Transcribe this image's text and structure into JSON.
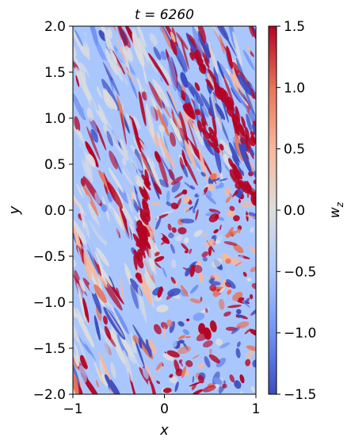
{
  "chart_data": {
    "type": "heatmap",
    "title": "t = 6260",
    "xlabel": "x",
    "ylabel": "y",
    "xlim": [
      -1,
      1
    ],
    "ylim": [
      -2,
      2
    ],
    "x_ticks": [
      -1,
      0,
      1
    ],
    "x_tick_labels": [
      "−1",
      "0",
      "1"
    ],
    "y_ticks": [
      2.0,
      1.5,
      1.0,
      0.5,
      0.0,
      -0.5,
      -1.0,
      -1.5,
      -2.0
    ],
    "y_tick_labels": [
      "2.0",
      "1.5",
      "1.0",
      "0.5",
      "0.0",
      "−0.5",
      "−1.0",
      "−1.5",
      "−2.0"
    ],
    "colorbar": {
      "label": "w_z",
      "label_display": "w",
      "label_sub": "z",
      "range": [
        -1.5,
        1.5
      ],
      "ticks": [
        1.5,
        1.0,
        0.5,
        0.0,
        -0.5,
        -1.0,
        -1.5
      ],
      "tick_labels": [
        "1.5",
        "1.0",
        "0.5",
        "0.0",
        "−0.5",
        "−1.0",
        "−1.5"
      ],
      "colormap": "coolwarm",
      "colors": [
        "#3b4cc0",
        "#6f92f3",
        "#aac7fd",
        "#dddddd",
        "#f7b89c",
        "#e7745b",
        "#b40426"
      ]
    },
    "field_description": "turbulent vorticity field with diagonal streaks from upper-left to lower-right"
  }
}
